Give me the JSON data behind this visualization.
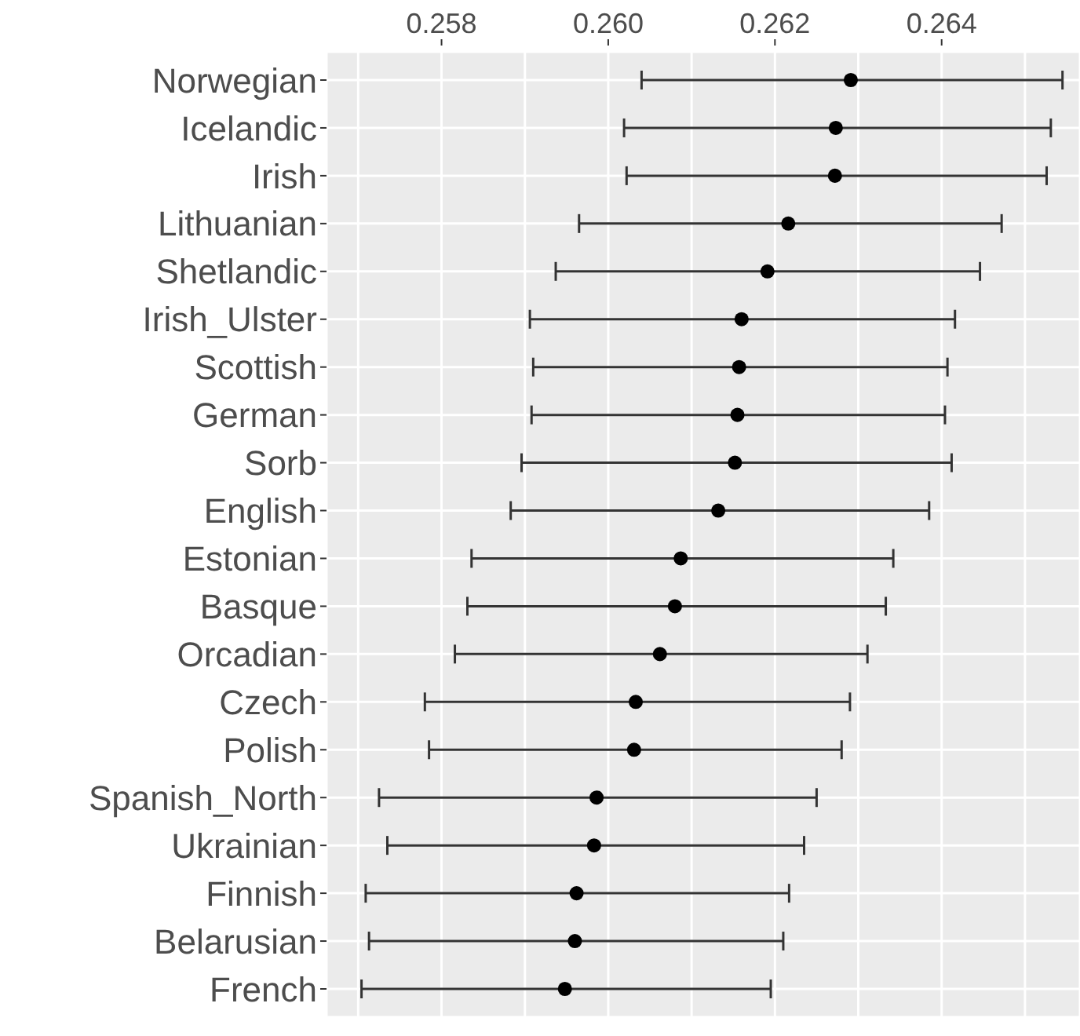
{
  "chart_data": {
    "type": "scatter",
    "categories": [
      "Norwegian",
      "Icelandic",
      "Irish",
      "Lithuanian",
      "Shetlandic",
      "Irish_Ulster",
      "Scottish",
      "German",
      "Sorb",
      "English",
      "Estonian",
      "Basque",
      "Orcadian",
      "Czech",
      "Polish",
      "Spanish_North",
      "Ukrainian",
      "Finnish",
      "Belarusian",
      "French"
    ],
    "values": [
      0.26291,
      0.26273,
      0.26272,
      0.26216,
      0.26191,
      0.2616,
      0.26157,
      0.26155,
      0.26152,
      0.26132,
      0.26087,
      0.2608,
      0.26062,
      0.26033,
      0.26031,
      0.25986,
      0.25983,
      0.25962,
      0.2596,
      0.25948
    ],
    "errors": [
      [
        0.2604,
        0.26545
      ],
      [
        0.26019,
        0.26531
      ],
      [
        0.26022,
        0.26526
      ],
      [
        0.25965,
        0.26472
      ],
      [
        0.25937,
        0.26446
      ],
      [
        0.25906,
        0.26416
      ],
      [
        0.2591,
        0.26407
      ],
      [
        0.25908,
        0.26404
      ],
      [
        0.25896,
        0.26412
      ],
      [
        0.25883,
        0.26385
      ],
      [
        0.25836,
        0.26342
      ],
      [
        0.25831,
        0.26333
      ],
      [
        0.25816,
        0.26311
      ],
      [
        0.2578,
        0.2629
      ],
      [
        0.25785,
        0.2628
      ],
      [
        0.25725,
        0.2625
      ],
      [
        0.25735,
        0.26235
      ],
      [
        0.25709,
        0.26217
      ],
      [
        0.25713,
        0.2621
      ],
      [
        0.25704,
        0.26195
      ]
    ],
    "color": "#000000",
    "marker": "circle",
    "xlim": [
      0.25662,
      0.26566
    ],
    "xticks": [
      {
        "value": 0.257,
        "label": null
      },
      {
        "value": 0.258,
        "label": "0.258"
      },
      {
        "value": 0.259,
        "label": null
      },
      {
        "value": 0.26,
        "label": "0.260"
      },
      {
        "value": 0.261,
        "label": null
      },
      {
        "value": 0.262,
        "label": "0.262"
      },
      {
        "value": 0.263,
        "label": null
      },
      {
        "value": 0.264,
        "label": "0.264"
      },
      {
        "value": 0.265,
        "label": null
      }
    ],
    "orientation": "horizontal",
    "grid": true
  }
}
